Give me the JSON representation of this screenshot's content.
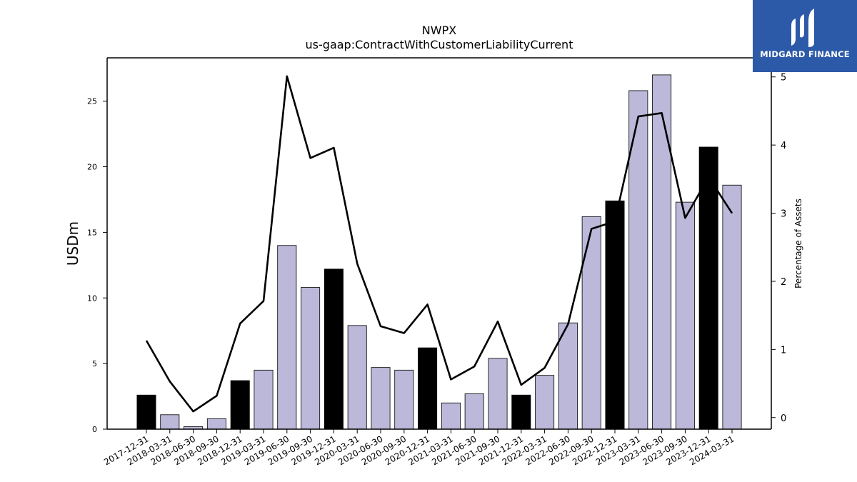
{
  "title_line1": "NWPX",
  "title_line2": "us-gaap:ContractWithCustomerLiabilityCurrent",
  "brand": {
    "name": "MIDGARD FINANCE",
    "color": "#2d5aa8"
  },
  "chart_data": {
    "type": "bar",
    "categories": [
      "2017-12-31",
      "2018-03-31",
      "2018-06-30",
      "2018-09-30",
      "2018-12-31",
      "2019-03-31",
      "2019-06-30",
      "2019-09-30",
      "2019-12-31",
      "2020-03-31",
      "2020-06-30",
      "2020-09-30",
      "2020-12-31",
      "2021-03-31",
      "2021-06-30",
      "2021-09-30",
      "2021-12-31",
      "2022-03-31",
      "2022-06-30",
      "2022-09-30",
      "2022-12-31",
      "2023-03-31",
      "2023-06-30",
      "2023-09-30",
      "2023-12-31",
      "2024-03-31"
    ],
    "series": [
      {
        "type": "bar",
        "axis": "left",
        "values": [
          2.6,
          1.1,
          0.2,
          0.8,
          3.7,
          4.5,
          14.0,
          10.8,
          12.2,
          7.9,
          4.7,
          4.5,
          6.2,
          2.0,
          2.7,
          5.4,
          2.6,
          4.1,
          8.1,
          16.2,
          17.4,
          25.8,
          27.0,
          17.3,
          21.5,
          18.6
        ],
        "highlight": [
          true,
          false,
          false,
          false,
          true,
          false,
          false,
          false,
          true,
          false,
          false,
          false,
          true,
          false,
          false,
          false,
          true,
          false,
          false,
          false,
          true,
          false,
          false,
          false,
          true,
          false
        ]
      },
      {
        "type": "line",
        "axis": "right",
        "values": [
          1.13,
          0.53,
          0.09,
          0.32,
          1.38,
          1.71,
          5.01,
          3.81,
          3.96,
          2.26,
          1.34,
          1.24,
          1.66,
          0.56,
          0.75,
          1.41,
          0.48,
          0.73,
          1.37,
          2.77,
          2.88,
          4.42,
          4.47,
          2.93,
          3.53,
          3.0
        ]
      }
    ],
    "ylabel": "USDm",
    "y2label": "Percentage of Assets",
    "ylim": [
      0,
      28.3
    ],
    "y2lim": [
      -0.17,
      5.28
    ],
    "yticks": [
      0,
      5,
      10,
      15,
      20,
      25
    ],
    "y2ticks": [
      0,
      1,
      2,
      3,
      4,
      5
    ],
    "colors": {
      "bar": "#bcb8d9",
      "highlight_bar": "#000000",
      "line": "#000000"
    },
    "grid": false,
    "legend": "none"
  }
}
